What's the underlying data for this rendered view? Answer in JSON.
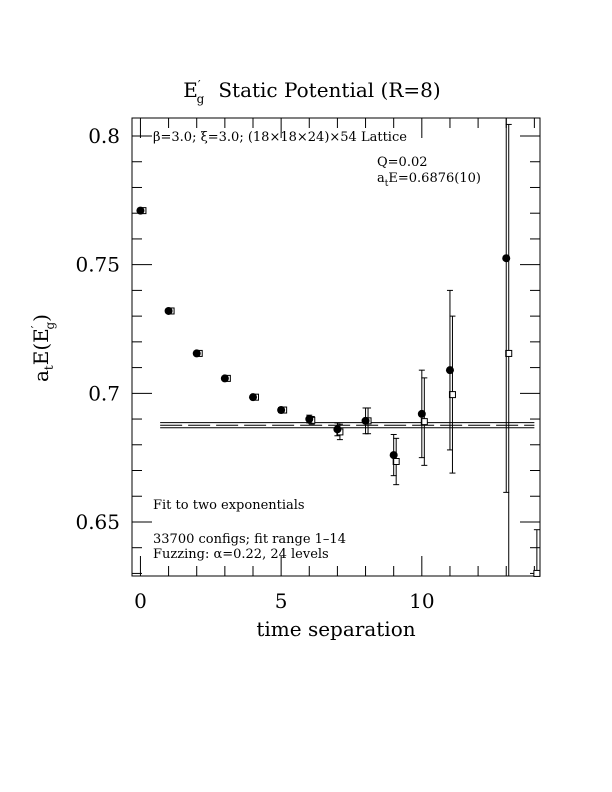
{
  "chart_data": {
    "type": "scatter",
    "title": {
      "main": "E",
      "sup": "′",
      "sub": "g",
      "rest": "Static Potential (R=8)"
    },
    "xlabel": "time separation",
    "ylabel": {
      "prefix": "a",
      "sub_t": "t",
      "mid": "E(E",
      "sup": "′",
      "sub_g": "g",
      "suffix": ")"
    },
    "xlim": [
      -0.3,
      14.2
    ],
    "ylim": [
      0.629,
      0.807
    ],
    "xticks": [
      0,
      5,
      10
    ],
    "yticks": [
      0.65,
      0.7,
      0.75,
      0.8
    ],
    "xtick_labels": [
      "0",
      "5",
      "10"
    ],
    "ytick_labels": [
      "0.65",
      "0.7",
      "0.75",
      "0.8"
    ],
    "annotations": {
      "lattice": "β=3.0; ξ=3.0; (18×18×24)×54 Lattice",
      "q_value": "Q=0.02",
      "ate_prefix": "a",
      "ate_sub": "t",
      "ate_suffix": "E=0.6876(10)",
      "fit_method": "Fit to two exponentials",
      "configs": "33700 configs; fit range 1–14",
      "fuzzing": "Fuzzing: α=0.22, 24 levels"
    },
    "fit": {
      "value": 0.6876,
      "error": 0.001,
      "x_range": [
        0.7,
        14.0
      ]
    },
    "series": [
      {
        "marker": "filled-circle",
        "points": [
          {
            "x": 0,
            "y": 0.771,
            "err": 0.0008
          },
          {
            "x": 1,
            "y": 0.732,
            "err": 0.0008
          },
          {
            "x": 2,
            "y": 0.7155,
            "err": 0.0008
          },
          {
            "x": 3,
            "y": 0.7058,
            "err": 0.0008
          },
          {
            "x": 4,
            "y": 0.6985,
            "err": 0.0008
          },
          {
            "x": 5,
            "y": 0.6935,
            "err": 0.001
          },
          {
            "x": 6,
            "y": 0.69,
            "err": 0.0015
          },
          {
            "x": 7,
            "y": 0.686,
            "err": 0.0025
          },
          {
            "x": 8,
            "y": 0.6893,
            "err": 0.005
          },
          {
            "x": 9,
            "y": 0.676,
            "err": 0.008
          },
          {
            "x": 10,
            "y": 0.692,
            "err": 0.017
          },
          {
            "x": 11,
            "y": 0.709,
            "err": 0.031
          },
          {
            "x": 13,
            "y": 0.7525,
            "err": 0.091
          }
        ]
      },
      {
        "marker": "open-square",
        "points": [
          {
            "x": 0,
            "y": 0.771,
            "err": 0.0008
          },
          {
            "x": 1,
            "y": 0.732,
            "err": 0.0008
          },
          {
            "x": 2,
            "y": 0.7155,
            "err": 0.0008
          },
          {
            "x": 3,
            "y": 0.7058,
            "err": 0.0008
          },
          {
            "x": 4,
            "y": 0.6985,
            "err": 0.0008
          },
          {
            "x": 5,
            "y": 0.6935,
            "err": 0.001
          },
          {
            "x": 6,
            "y": 0.6895,
            "err": 0.0015
          },
          {
            "x": 7,
            "y": 0.685,
            "err": 0.003
          },
          {
            "x": 8,
            "y": 0.6893,
            "err": 0.005
          },
          {
            "x": 9,
            "y": 0.6735,
            "err": 0.009
          },
          {
            "x": 10,
            "y": 0.689,
            "err": 0.017
          },
          {
            "x": 11,
            "y": 0.6995,
            "err": 0.0305
          },
          {
            "x": 13,
            "y": 0.7155,
            "err": 0.089
          },
          {
            "x": 14,
            "y": 0.63,
            "err": 0.017
          }
        ]
      }
    ]
  }
}
